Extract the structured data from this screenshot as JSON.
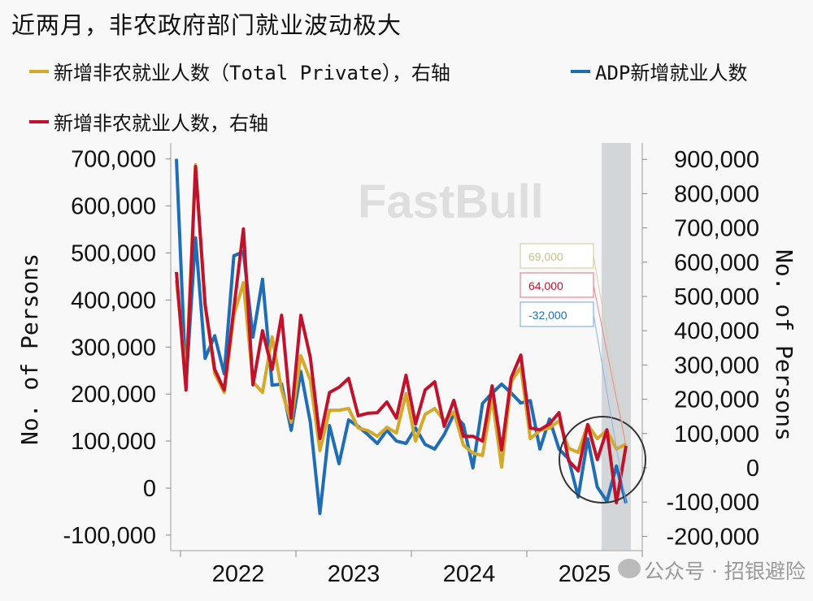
{
  "title": "近两月，非农政府部门就业波动极大",
  "legend": [
    {
      "label": "新增非农就业人数（Total Private），右轴",
      "color": "#d4a829"
    },
    {
      "label": "ADP新增就业人数",
      "color": "#1f6db5"
    },
    {
      "label": "新增非农就业人数，右轴",
      "color": "#c0122d"
    }
  ],
  "watermark": {
    "brand": "FastBull",
    "source": "公众号 · 招银避险"
  },
  "chart_data": {
    "type": "line",
    "ylabel_left": "No. of Persons",
    "ylabel_right": "No. of Persons",
    "ylim_left": [
      -100000,
      700000
    ],
    "ylim_right": [
      -200000,
      900000
    ],
    "left_ticks": [
      "700,000",
      "600,000",
      "500,000",
      "400,000",
      "300,000",
      "200,000",
      "100,000",
      "0",
      "-100,000"
    ],
    "right_ticks": [
      "900,000",
      "800,000",
      "700,000",
      "600,000",
      "500,000",
      "400,000",
      "300,000",
      "200,000",
      "100,000",
      "0",
      "-100,000",
      "-200,000"
    ],
    "x_tick_labels": [
      "2022",
      "2023",
      "2024",
      "2025"
    ],
    "x_start": "2021-12",
    "x_end": "2025-11",
    "frequency": "monthly",
    "shaded_period": [
      "2025-10",
      "2025-11"
    ],
    "grid": false,
    "legend_position": "top",
    "series": [
      {
        "name": "新增非农就业人数（Total Private），右轴",
        "axis": "right",
        "color": "#d4a829",
        "values": [
          547000,
          263000,
          884000,
          476000,
          275000,
          220000,
          445000,
          540000,
          251000,
          220000,
          382000,
          227000,
          133000,
          327000,
          256000,
          50000,
          168000,
          168000,
          173000,
          116000,
          109000,
          92000,
          118000,
          102000,
          216000,
          78000,
          156000,
          173000,
          137000,
          163000,
          66000,
          43000,
          36000,
          204000,
          2000,
          251000,
          294000,
          85000,
          109000,
          116000,
          137000,
          57000,
          45000,
          126000,
          85000,
          109000,
          55000,
          69000
        ]
      },
      {
        "name": "ADP新增就业人数",
        "axis": "left",
        "color": "#1f6db5",
        "values": [
          700000,
          222000,
          532000,
          276000,
          324000,
          243000,
          494000,
          503000,
          321000,
          444000,
          219000,
          221000,
          123000,
          248000,
          140000,
          -54000,
          133000,
          52000,
          145000,
          131000,
          114000,
          95000,
          123000,
          100000,
          95000,
          128000,
          93000,
          83000,
          114000,
          157000,
          135000,
          43000,
          180000,
          202000,
          221000,
          202000,
          181000,
          186000,
          83000,
          147000,
          83000,
          62000,
          -19000,
          105000,
          2000,
          -28000,
          47000,
          -32000
        ]
      },
      {
        "name": "新增非农就业人数，右轴",
        "axis": "right",
        "color": "#c0122d",
        "values": [
          571000,
          227000,
          879000,
          476000,
          287000,
          227000,
          464000,
          697000,
          242000,
          400000,
          287000,
          445000,
          145000,
          445000,
          322000,
          85000,
          220000,
          235000,
          261000,
          152000,
          159000,
          161000,
          192000,
          145000,
          270000,
          128000,
          227000,
          251000,
          121000,
          197000,
          92000,
          92000,
          78000,
          239000,
          52000,
          263000,
          329000,
          116000,
          111000,
          128000,
          161000,
          21000,
          -9000,
          126000,
          24000,
          111000,
          -102000,
          64000
        ]
      }
    ],
    "annotations": [
      {
        "text": "69,000",
        "series": 0,
        "color": "#c8bc8a"
      },
      {
        "text": "64,000",
        "series": 2,
        "color": "#c0122d"
      },
      {
        "text": "-32,000",
        "series": 1,
        "color": "#1f6db5"
      }
    ]
  }
}
